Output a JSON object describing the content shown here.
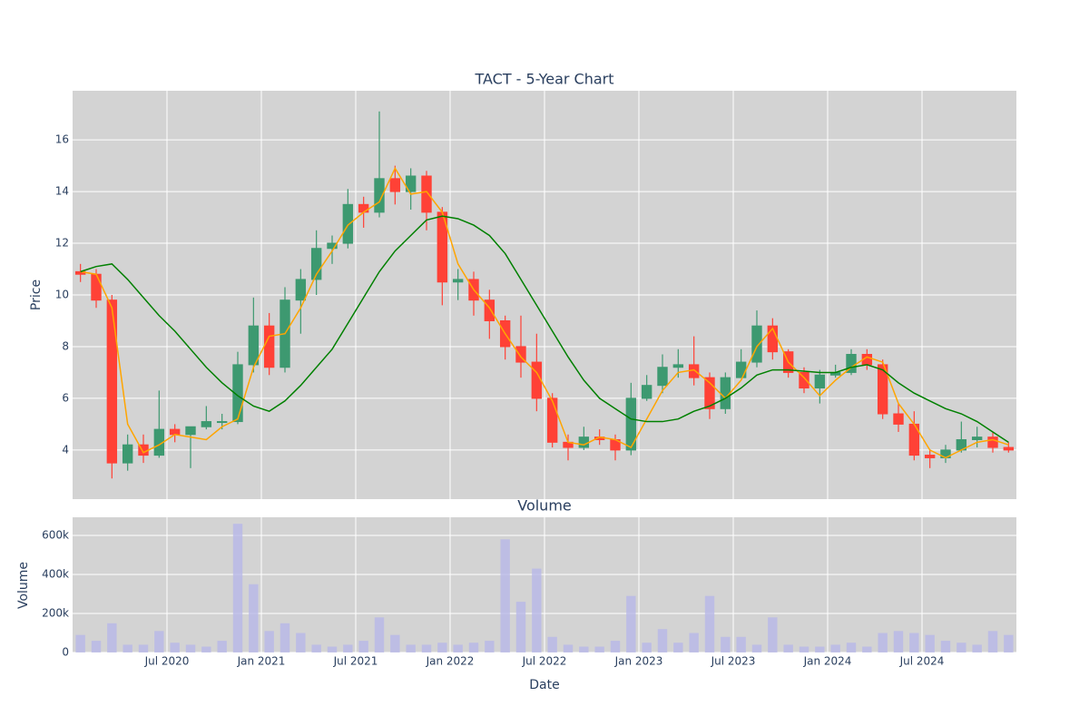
{
  "chart_data": [
    {
      "type": "candlestick",
      "title": "TACT - 5-Year Chart",
      "ylabel": "Price",
      "x": [
        "2020-01",
        "2020-02",
        "2020-03",
        "2020-04",
        "2020-05",
        "2020-06",
        "2020-07",
        "2020-08",
        "2020-09",
        "2020-10",
        "2020-11",
        "2020-12",
        "2021-01",
        "2021-02",
        "2021-03",
        "2021-04",
        "2021-05",
        "2021-06",
        "2021-07",
        "2021-08",
        "2021-09",
        "2021-10",
        "2021-11",
        "2021-12",
        "2022-01",
        "2022-02",
        "2022-03",
        "2022-04",
        "2022-05",
        "2022-06",
        "2022-07",
        "2022-08",
        "2022-09",
        "2022-10",
        "2022-11",
        "2022-12",
        "2023-01",
        "2023-02",
        "2023-03",
        "2023-04",
        "2023-05",
        "2023-06",
        "2023-07",
        "2023-08",
        "2023-09",
        "2023-10",
        "2023-11",
        "2023-12",
        "2024-01",
        "2024-02",
        "2024-03",
        "2024-04",
        "2024-05",
        "2024-06",
        "2024-07",
        "2024-08",
        "2024-09",
        "2024-10",
        "2024-11",
        "2024-12"
      ],
      "open": [
        10.9,
        10.8,
        9.8,
        3.5,
        4.2,
        3.8,
        4.8,
        4.6,
        4.9,
        5.1,
        5.1,
        7.3,
        8.8,
        7.2,
        9.8,
        10.6,
        11.8,
        12.0,
        13.5,
        13.2,
        14.5,
        14.0,
        14.6,
        13.2,
        10.5,
        10.6,
        9.8,
        9.0,
        8.0,
        7.4,
        6.0,
        4.3,
        4.1,
        4.5,
        4.4,
        4.0,
        6.0,
        6.5,
        7.2,
        7.3,
        6.8,
        5.6,
        6.8,
        7.4,
        8.8,
        7.8,
        7.0,
        6.4,
        6.9,
        7.0,
        7.7,
        7.3,
        5.4,
        5.0,
        3.8,
        3.7,
        4.0,
        4.4,
        4.5,
        4.1
      ],
      "high": [
        11.2,
        11.0,
        10.0,
        4.6,
        4.6,
        6.3,
        5.0,
        4.8,
        5.7,
        5.4,
        7.8,
        9.9,
        9.3,
        10.3,
        11.0,
        12.5,
        12.3,
        14.1,
        13.8,
        17.1,
        15.0,
        14.9,
        14.8,
        13.4,
        11.0,
        10.9,
        10.2,
        9.2,
        9.2,
        8.5,
        6.2,
        4.6,
        4.9,
        4.8,
        4.6,
        6.6,
        6.9,
        7.7,
        7.9,
        8.4,
        7.0,
        7.0,
        7.9,
        9.4,
        9.1,
        7.9,
        7.2,
        7.1,
        7.3,
        7.9,
        7.9,
        7.5,
        5.8,
        5.5,
        4.0,
        4.2,
        5.1,
        4.9,
        4.7,
        4.3
      ],
      "low": [
        10.5,
        9.5,
        2.9,
        3.2,
        3.5,
        3.7,
        4.3,
        3.3,
        4.8,
        4.8,
        5.0,
        7.0,
        6.9,
        7.0,
        8.5,
        10.0,
        11.2,
        11.8,
        12.6,
        13.0,
        13.5,
        13.3,
        12.5,
        9.6,
        9.8,
        9.2,
        8.3,
        7.5,
        6.8,
        5.5,
        4.1,
        3.6,
        4.0,
        4.2,
        3.6,
        3.8,
        5.9,
        6.2,
        6.8,
        6.5,
        5.2,
        5.4,
        6.8,
        7.2,
        7.5,
        6.8,
        6.2,
        5.8,
        6.8,
        6.9,
        7.1,
        5.2,
        4.7,
        3.6,
        3.3,
        3.5,
        3.9,
        4.1,
        3.9,
        3.9
      ],
      "close": [
        10.8,
        9.8,
        3.5,
        4.2,
        3.8,
        4.8,
        4.6,
        4.9,
        5.1,
        5.1,
        7.3,
        8.8,
        7.2,
        9.8,
        10.6,
        11.8,
        12.0,
        13.5,
        13.2,
        14.5,
        14.0,
        14.6,
        13.2,
        10.5,
        10.6,
        9.8,
        9.0,
        8.0,
        7.4,
        6.0,
        4.3,
        4.1,
        4.5,
        4.4,
        4.0,
        6.0,
        6.5,
        7.2,
        7.3,
        6.8,
        5.6,
        6.8,
        7.4,
        8.8,
        7.8,
        7.0,
        6.4,
        6.9,
        7.0,
        7.7,
        7.3,
        5.4,
        5.0,
        3.8,
        3.7,
        4.0,
        4.4,
        4.5,
        4.1,
        4.0
      ],
      "increasing_color": "#3d9970",
      "decreasing_color": "#ff4136",
      "lines": [
        {
          "color": "orange",
          "values": [
            10.9,
            10.8,
            9.5,
            5.0,
            3.9,
            4.2,
            4.6,
            4.5,
            4.4,
            4.9,
            5.2,
            7.2,
            8.4,
            8.5,
            9.5,
            10.8,
            11.7,
            12.7,
            13.2,
            13.6,
            14.9,
            13.9,
            14.0,
            13.2,
            11.2,
            10.2,
            9.5,
            8.5,
            7.6,
            7.0,
            5.9,
            4.3,
            4.2,
            4.5,
            4.4,
            4.1,
            5.2,
            6.3,
            7.0,
            7.1,
            6.6,
            6.0,
            6.7,
            8.0,
            8.7,
            7.4,
            6.8,
            6.1,
            6.7,
            7.2,
            7.6,
            7.4,
            5.8,
            5.0,
            4.0,
            3.7,
            4.0,
            4.3,
            4.4,
            4.2
          ]
        },
        {
          "color": "green",
          "values": [
            10.9,
            11.1,
            11.2,
            10.6,
            9.9,
            9.2,
            8.6,
            7.9,
            7.2,
            6.6,
            6.1,
            5.7,
            5.5,
            5.9,
            6.5,
            7.2,
            7.9,
            8.9,
            9.9,
            10.9,
            11.7,
            12.3,
            12.9,
            13.05,
            12.95,
            12.7,
            12.3,
            11.6,
            10.6,
            9.6,
            8.6,
            7.6,
            6.7,
            6.0,
            5.6,
            5.2,
            5.1,
            5.1,
            5.2,
            5.5,
            5.7,
            6.0,
            6.4,
            6.9,
            7.1,
            7.1,
            7.05,
            7.0,
            7.0,
            7.2,
            7.3,
            7.1,
            6.6,
            6.2,
            5.9,
            5.6,
            5.4,
            5.1,
            4.7,
            4.3
          ]
        }
      ],
      "xlim": [
        "2020-01",
        "2025-01"
      ],
      "ylim": [
        2.1,
        17.9
      ],
      "yticks": [
        4,
        6,
        8,
        10,
        12,
        14,
        16
      ],
      "grid": true
    },
    {
      "type": "bar",
      "title": "Volume",
      "xlabel": "Date",
      "ylabel": "Volume",
      "color": "#b8b8e8",
      "values": [
        90000,
        60000,
        150000,
        40000,
        40000,
        110000,
        50000,
        40000,
        30000,
        60000,
        660000,
        350000,
        110000,
        150000,
        100000,
        40000,
        30000,
        40000,
        60000,
        180000,
        90000,
        40000,
        40000,
        50000,
        40000,
        50000,
        60000,
        580000,
        260000,
        430000,
        80000,
        40000,
        30000,
        30000,
        60000,
        290000,
        50000,
        120000,
        50000,
        100000,
        290000,
        80000,
        80000,
        40000,
        180000,
        40000,
        30000,
        30000,
        40000,
        50000,
        30000,
        100000,
        110000,
        100000,
        90000,
        60000,
        50000,
        40000,
        110000,
        90000
      ],
      "xlim": [
        "2020-01",
        "2025-01"
      ],
      "xticks": [
        {
          "value": "2020-07",
          "label": "Jul 2020"
        },
        {
          "value": "2021-01",
          "label": "Jan 2021"
        },
        {
          "value": "2021-07",
          "label": "Jul 2021"
        },
        {
          "value": "2022-01",
          "label": "Jan 2022"
        },
        {
          "value": "2022-07",
          "label": "Jul 2022"
        },
        {
          "value": "2023-01",
          "label": "Jan 2023"
        },
        {
          "value": "2023-07",
          "label": "Jul 2023"
        },
        {
          "value": "2024-01",
          "label": "Jan 2024"
        },
        {
          "value": "2024-07",
          "label": "Jul 2024"
        }
      ],
      "ylim": [
        0,
        693000
      ],
      "yticks": [
        0,
        {
          "value": 200000,
          "label": "200k"
        },
        {
          "value": 400000,
          "label": "400k"
        },
        {
          "value": 600000,
          "label": "600k"
        }
      ],
      "grid": true
    }
  ]
}
